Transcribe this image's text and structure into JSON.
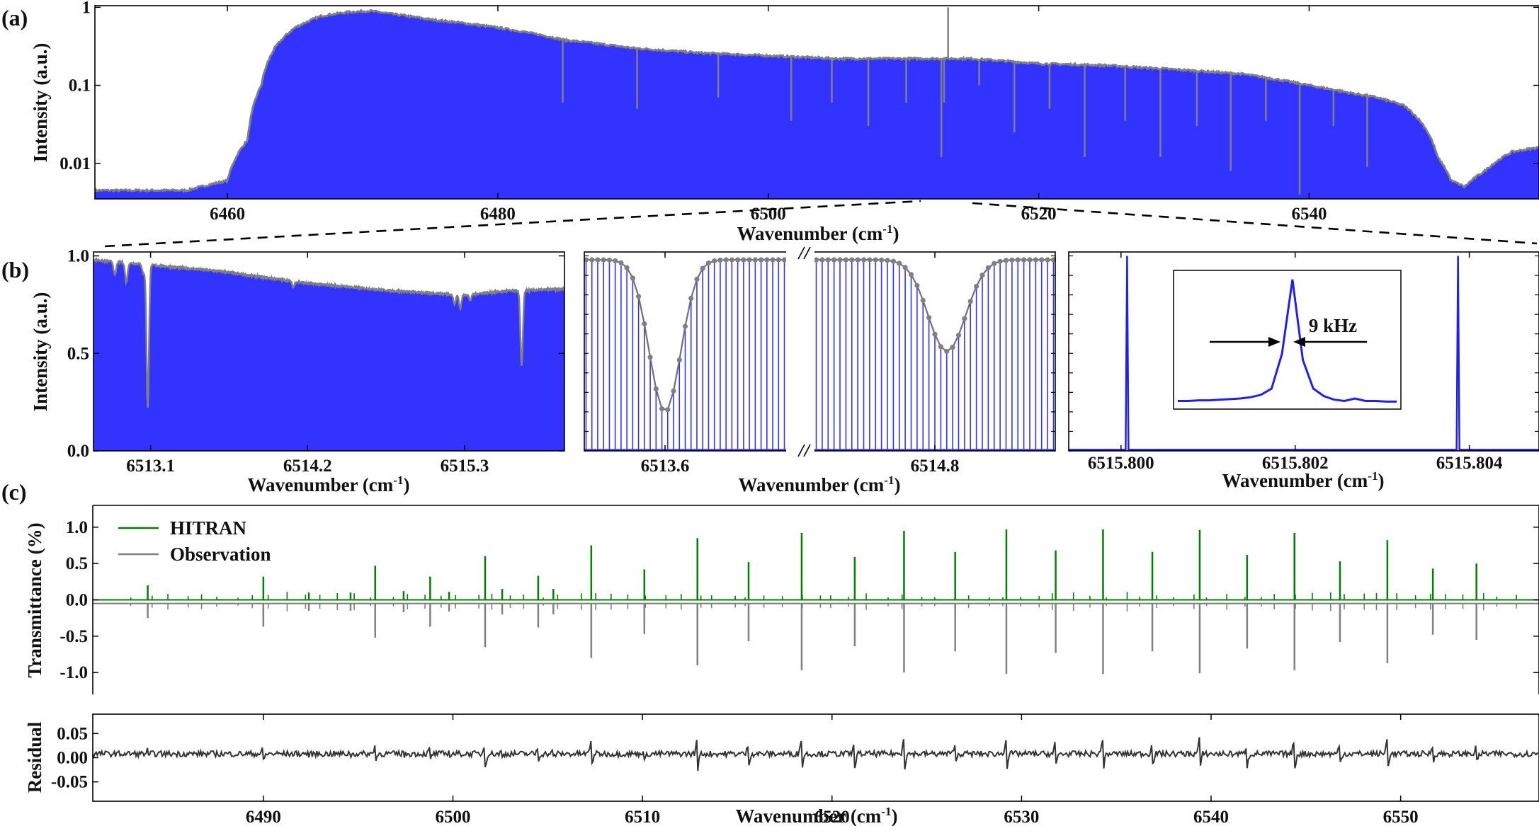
{
  "panel_labels": [
    "(a)",
    "(b)",
    "(c)"
  ],
  "chart_data": [
    {
      "type": "area",
      "name": "a",
      "xlabel": "Wavenumber",
      "xunit": "(cm",
      "xunit_sup": "-1",
      "xunit_close": ")",
      "ylabel": "Intensity (a.u.)",
      "y_scale": "log",
      "xlim": [
        6450.2,
        6557.0
      ],
      "ylim": [
        0.0035,
        1.05
      ],
      "xticks": [
        6460,
        6480,
        6500,
        6520,
        6540
      ],
      "yticks": [
        0.01,
        0.1,
        1
      ],
      "ytick_labels": [
        "0.01",
        "0.1",
        "1"
      ],
      "envelope": {
        "x": [
          6450.2,
          6457,
          6460,
          6461.5,
          6462.5,
          6463.5,
          6465,
          6467,
          6469,
          6470.5,
          6472,
          6475,
          6480,
          6485,
          6490,
          6495,
          6500,
          6505,
          6510,
          6515,
          6520,
          6525,
          6530,
          6535,
          6540,
          6543,
          6545,
          6547,
          6548.5,
          6549.5,
          6550.5,
          6551.5,
          6553,
          6555,
          6557
        ],
        "y": [
          0.0045,
          0.0045,
          0.006,
          0.02,
          0.1,
          0.3,
          0.55,
          0.78,
          0.87,
          0.9,
          0.83,
          0.7,
          0.55,
          0.38,
          0.3,
          0.26,
          0.24,
          0.22,
          0.22,
          0.22,
          0.19,
          0.18,
          0.16,
          0.14,
          0.1,
          0.08,
          0.07,
          0.055,
          0.03,
          0.012,
          0.006,
          0.005,
          0.008,
          0.014,
          0.016
        ]
      },
      "absorption_lines": {
        "x": [
          6484.8,
          6490.3,
          6496.3,
          6501.7,
          6504.7,
          6507.4,
          6510.2,
          6512.8,
          6513.0,
          6515.6,
          6518.2,
          6520.8,
          6523.4,
          6526.4,
          6529.0,
          6531.7,
          6534.2,
          6536.8,
          6539.3,
          6541.8,
          6544.3
        ],
        "y": [
          0.06,
          0.05,
          0.07,
          0.035,
          0.06,
          0.03,
          0.06,
          0.012,
          0.06,
          0.1,
          0.025,
          0.05,
          0.012,
          0.035,
          0.012,
          0.03,
          0.008,
          0.035,
          0.004,
          0.03,
          0.009
        ]
      },
      "spike": {
        "x": 6513.3,
        "y": 1.0
      },
      "colors": {
        "fill": "#3333ff",
        "envelope": "#808080"
      }
    },
    {
      "type": "area",
      "name": "b1",
      "xlabel": "Wavenumber",
      "xunit": "(cm",
      "xunit_sup": "-1",
      "xunit_close": ")",
      "ylabel": "Intensity (a.u.)",
      "xlim": [
        6512.7,
        6516.0
      ],
      "ylim": [
        0.0,
        1.02
      ],
      "xticks": [
        6513.1,
        6514.2,
        6515.3
      ],
      "yticks": [
        0.0,
        0.5,
        1.0
      ],
      "ytick_labels": [
        "0.0",
        "0.5",
        "1.0"
      ],
      "baseline": {
        "x": [
          6512.7,
          6513.0,
          6513.6,
          6514.2,
          6514.8,
          6515.3,
          6515.6,
          6516.0
        ],
        "y": [
          0.98,
          0.96,
          0.92,
          0.86,
          0.82,
          0.8,
          0.82,
          0.83
        ]
      },
      "dips": [
        {
          "x": 6512.85,
          "depth": 0.07
        },
        {
          "x": 6512.93,
          "depth": 0.1
        },
        {
          "x": 6513.05,
          "depth": 0.05
        },
        {
          "x": 6513.08,
          "depth": 0.74
        },
        {
          "x": 6514.1,
          "depth": 0.03
        },
        {
          "x": 6515.23,
          "depth": 0.05
        },
        {
          "x": 6515.27,
          "depth": 0.07
        },
        {
          "x": 6515.34,
          "depth": 0.03
        },
        {
          "x": 6515.7,
          "depth": 0.39
        }
      ],
      "colors": {
        "fill": "#3333ff",
        "envelope": "#808080"
      }
    },
    {
      "type": "line",
      "name": "b2",
      "xlabel": "Wavenumber",
      "xunit": "(cm",
      "xunit_sup": "-1",
      "xunit_close": ")",
      "broken_axis": true,
      "segments": [
        {
          "xlim": [
            6513.2,
            6514.2
          ],
          "dip_x": 6513.6,
          "dip_min": 0.2
        },
        {
          "xlim": [
            6514.3,
            6515.3
          ],
          "dip_x": 6514.85,
          "dip_min": 0.51
        }
      ],
      "xticks": [
        6513.6,
        6514.8
      ],
      "ylim": [
        0.0,
        1.02
      ],
      "comb_top": 0.98,
      "colors": {
        "comb": "#3333ff",
        "envelope": "#707070",
        "points": "#808080"
      }
    },
    {
      "type": "line",
      "name": "b3",
      "xlabel": "Wavenumber",
      "xunit": "(cm",
      "xunit_sup": "-1",
      "xunit_close": ")",
      "xlim": [
        6515.7994,
        6515.8048
      ],
      "ylim": [
        0.0,
        1.02
      ],
      "xticks": [
        6515.8,
        6515.802,
        6515.804
      ],
      "xtick_labels": [
        "6515.800",
        "6515.802",
        "6515.804"
      ],
      "peaks": [
        6515.80007,
        6515.80387
      ],
      "inset": {
        "annotation": "9 kHz",
        "points": [
          0.02,
          0.02,
          0.025,
          0.025,
          0.03,
          0.035,
          0.04,
          0.05,
          0.07,
          0.12,
          0.4,
          1.0,
          0.35,
          0.12,
          0.06,
          0.03,
          0.02,
          0.04,
          0.02,
          0.02,
          0.015,
          0.015
        ]
      },
      "colors": {
        "line": "#2020ee"
      }
    },
    {
      "type": "line",
      "name": "c",
      "xlabel": "Wavenumber",
      "xunit": "(cm",
      "xunit_sup": "-1",
      "xunit_close": ")",
      "ylabel": "Transmittance (%)",
      "xlim": [
        6481.0,
        6557.3
      ],
      "ylim": [
        -1.3,
        1.3
      ],
      "xticks": [
        6490,
        6500,
        6510,
        6520,
        6530,
        6540,
        6550
      ],
      "yticks": [
        -1.0,
        -0.5,
        0.0,
        0.5,
        1.0
      ],
      "ytick_labels": [
        "-1.0",
        "-0.5",
        "0.0",
        "0.5",
        "1.0"
      ],
      "legend_position": "top-left",
      "series": [
        {
          "name": "HITRAN",
          "color": "#008000"
        },
        {
          "name": "Observation",
          "color": "#808080"
        }
      ],
      "lines_x": [
        6483.9,
        6490.0,
        6492.4,
        6494.6,
        6495.9,
        6497.4,
        6498.8,
        6499.8,
        6501.7,
        6502.6,
        6504.5,
        6505.3,
        6507.3,
        6510.1,
        6512.9,
        6515.6,
        6518.4,
        6521.2,
        6523.8,
        6526.5,
        6529.2,
        6531.8,
        6534.3,
        6536.9,
        6539.4,
        6541.9,
        6544.4,
        6546.8,
        6549.3,
        6551.7,
        6554.0
      ],
      "lines_y": [
        0.2,
        0.32,
        0.1,
        0.1,
        0.47,
        0.12,
        0.32,
        0.11,
        0.6,
        0.15,
        0.33,
        0.15,
        0.75,
        0.42,
        0.85,
        0.52,
        0.92,
        0.59,
        0.95,
        0.66,
        0.97,
        0.68,
        0.97,
        0.66,
        0.96,
        0.62,
        0.92,
        0.53,
        0.82,
        0.43,
        0.5
      ]
    },
    {
      "type": "line",
      "name": "c-residual",
      "xlabel": "Wavenumber",
      "ylabel": "Residual",
      "xlim": [
        6481.0,
        6557.3
      ],
      "ylim": [
        -0.09,
        0.09
      ],
      "xticks": [
        6490,
        6500,
        6510,
        6520,
        6530,
        6540,
        6550
      ],
      "yticks": [
        -0.05,
        0.0,
        0.05
      ],
      "ytick_labels": [
        "-0.05",
        "0.00",
        "0.05"
      ],
      "colors": {
        "line": "#333333"
      }
    }
  ]
}
